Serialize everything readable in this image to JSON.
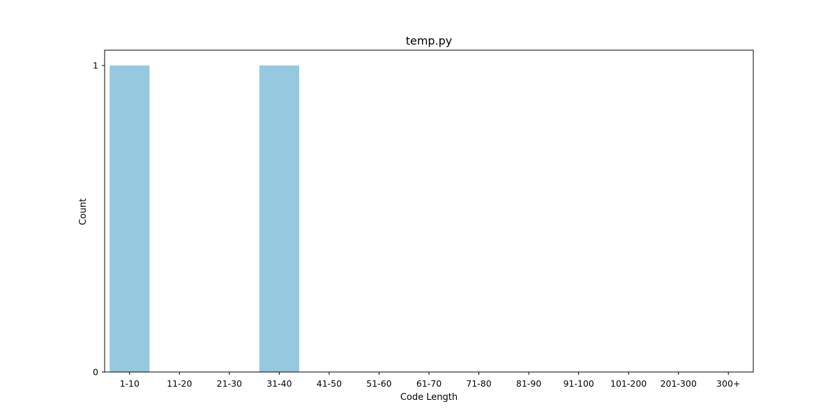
{
  "chart_data": {
    "type": "bar",
    "title": "temp.py",
    "xlabel": "Code Length",
    "ylabel": "Count",
    "categories": [
      "1-10",
      "11-20",
      "21-30",
      "31-40",
      "41-50",
      "51-60",
      "61-70",
      "71-80",
      "81-90",
      "91-100",
      "101-200",
      "201-300",
      "300+"
    ],
    "values": [
      1,
      0,
      0,
      1,
      0,
      0,
      0,
      0,
      0,
      0,
      0,
      0,
      0
    ],
    "ylim": [
      0,
      1.05
    ],
    "yticks": [
      0,
      1
    ],
    "grid": false,
    "bar_color": "#96c9df"
  }
}
